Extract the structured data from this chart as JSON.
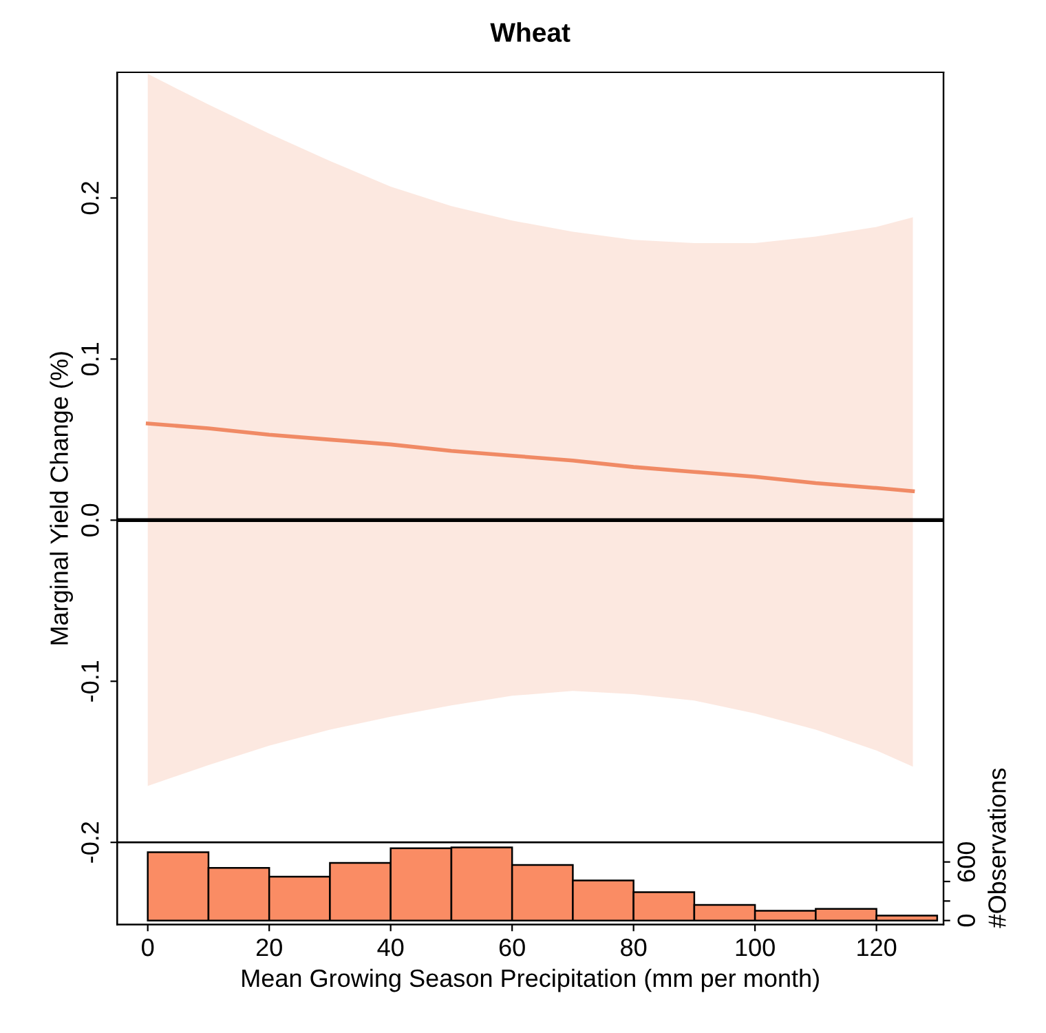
{
  "chart_data": {
    "type": "line",
    "title": "Wheat",
    "xlabel": "Mean Growing Season Precipitation (mm per month)",
    "ylabel": "Marginal Yield Change (%)",
    "y2label": "#Observations",
    "xlim": [
      -5.04,
      131.04
    ],
    "xticks": [
      0,
      20,
      40,
      60,
      80,
      100,
      120
    ],
    "ylim": [
      -0.251,
      0.278
    ],
    "yticks": [
      {
        "value": -0.2,
        "label": "-0.2"
      },
      {
        "value": -0.1,
        "label": "-0.1"
      },
      {
        "value": 0.0,
        "label": "0.0"
      },
      {
        "value": 0.1,
        "label": "0.1"
      },
      {
        "value": 0.2,
        "label": "0.2"
      }
    ],
    "y2lim": [
      -41,
      8690
    ],
    "y2ticks": [
      0,
      {
        "value": 200,
        "label": null
      },
      {
        "value": 400,
        "label": null
      },
      600
    ],
    "grid": false,
    "legend": false,
    "ref_lines": [
      {
        "axis": "y",
        "value": 0.0,
        "color": "#000000",
        "line_style": "solid"
      },
      {
        "axis": "y",
        "value": -0.2,
        "color": "#000000",
        "line_style": "solid"
      }
    ],
    "series": [
      {
        "color": "#f08a65",
        "x": [
          0,
          10,
          20,
          30,
          40,
          50,
          60,
          70,
          80,
          90,
          100,
          110,
          120,
          126
        ],
        "values": [
          0.06,
          0.057,
          0.053,
          0.05,
          0.047,
          0.043,
          0.04,
          0.037,
          0.033,
          0.03,
          0.027,
          0.023,
          0.02,
          0.018
        ],
        "upper": [
          0.277,
          0.258,
          0.24,
          0.223,
          0.207,
          0.195,
          0.186,
          0.179,
          0.174,
          0.172,
          0.172,
          0.176,
          0.182,
          0.188
        ],
        "lower": [
          -0.165,
          -0.152,
          -0.14,
          -0.13,
          -0.122,
          -0.115,
          -0.109,
          -0.106,
          -0.108,
          -0.112,
          -0.12,
          -0.13,
          -0.143,
          -0.153
        ]
      },
      {
        "type": "histogram",
        "axis": "y2",
        "color": "#fa8c64",
        "bins": [
          0,
          10,
          20,
          30,
          40,
          50,
          60,
          70,
          80,
          90,
          100,
          110,
          120,
          130
        ],
        "values": [
          700,
          540,
          450,
          590,
          740,
          750,
          570,
          410,
          290,
          160,
          100,
          120,
          50
        ]
      }
    ]
  }
}
